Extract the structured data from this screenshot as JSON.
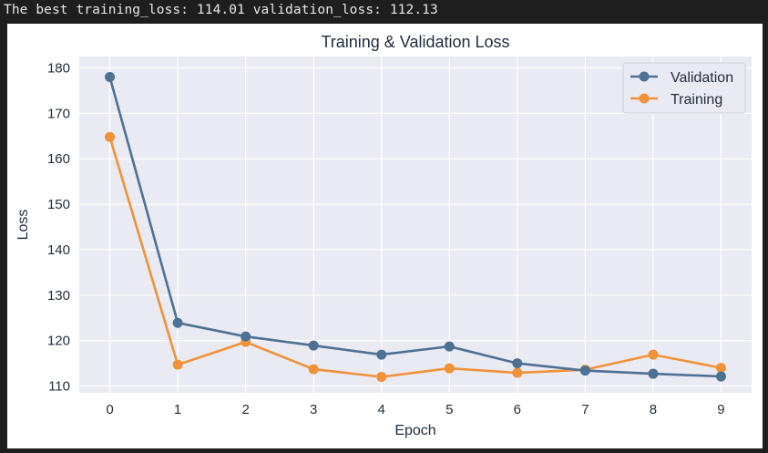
{
  "console": {
    "output_line": "The best training_loss: 114.01 validation_loss: 112.13"
  },
  "chart_data": {
    "type": "line",
    "title": "Training & Validation Loss",
    "xlabel": "Epoch",
    "ylabel": "Loss",
    "x": [
      0,
      1,
      2,
      3,
      4,
      5,
      6,
      7,
      8,
      9
    ],
    "xticks": [
      "0",
      "1",
      "2",
      "3",
      "4",
      "5",
      "6",
      "7",
      "8",
      "9"
    ],
    "yticks": [
      "110",
      "120",
      "130",
      "140",
      "150",
      "160",
      "170",
      "180"
    ],
    "ylim": [
      108.5,
      182.5
    ],
    "xlim": [
      -0.45,
      9.45
    ],
    "grid": true,
    "legend_position": "upper-right",
    "series": [
      {
        "name": "Validation",
        "color": "#4c7194",
        "values": [
          178.0,
          123.9,
          120.9,
          118.9,
          116.9,
          118.7,
          115.0,
          113.4,
          112.7,
          112.1
        ]
      },
      {
        "name": "Training",
        "color": "#f0923a",
        "values": [
          164.8,
          114.7,
          119.7,
          113.7,
          112.0,
          113.9,
          112.9,
          113.6,
          116.9,
          114.0
        ]
      }
    ]
  },
  "colors": {
    "background": "#1e1e1e",
    "plot_area": "#eaeaf2",
    "grid": "#ffffff"
  }
}
